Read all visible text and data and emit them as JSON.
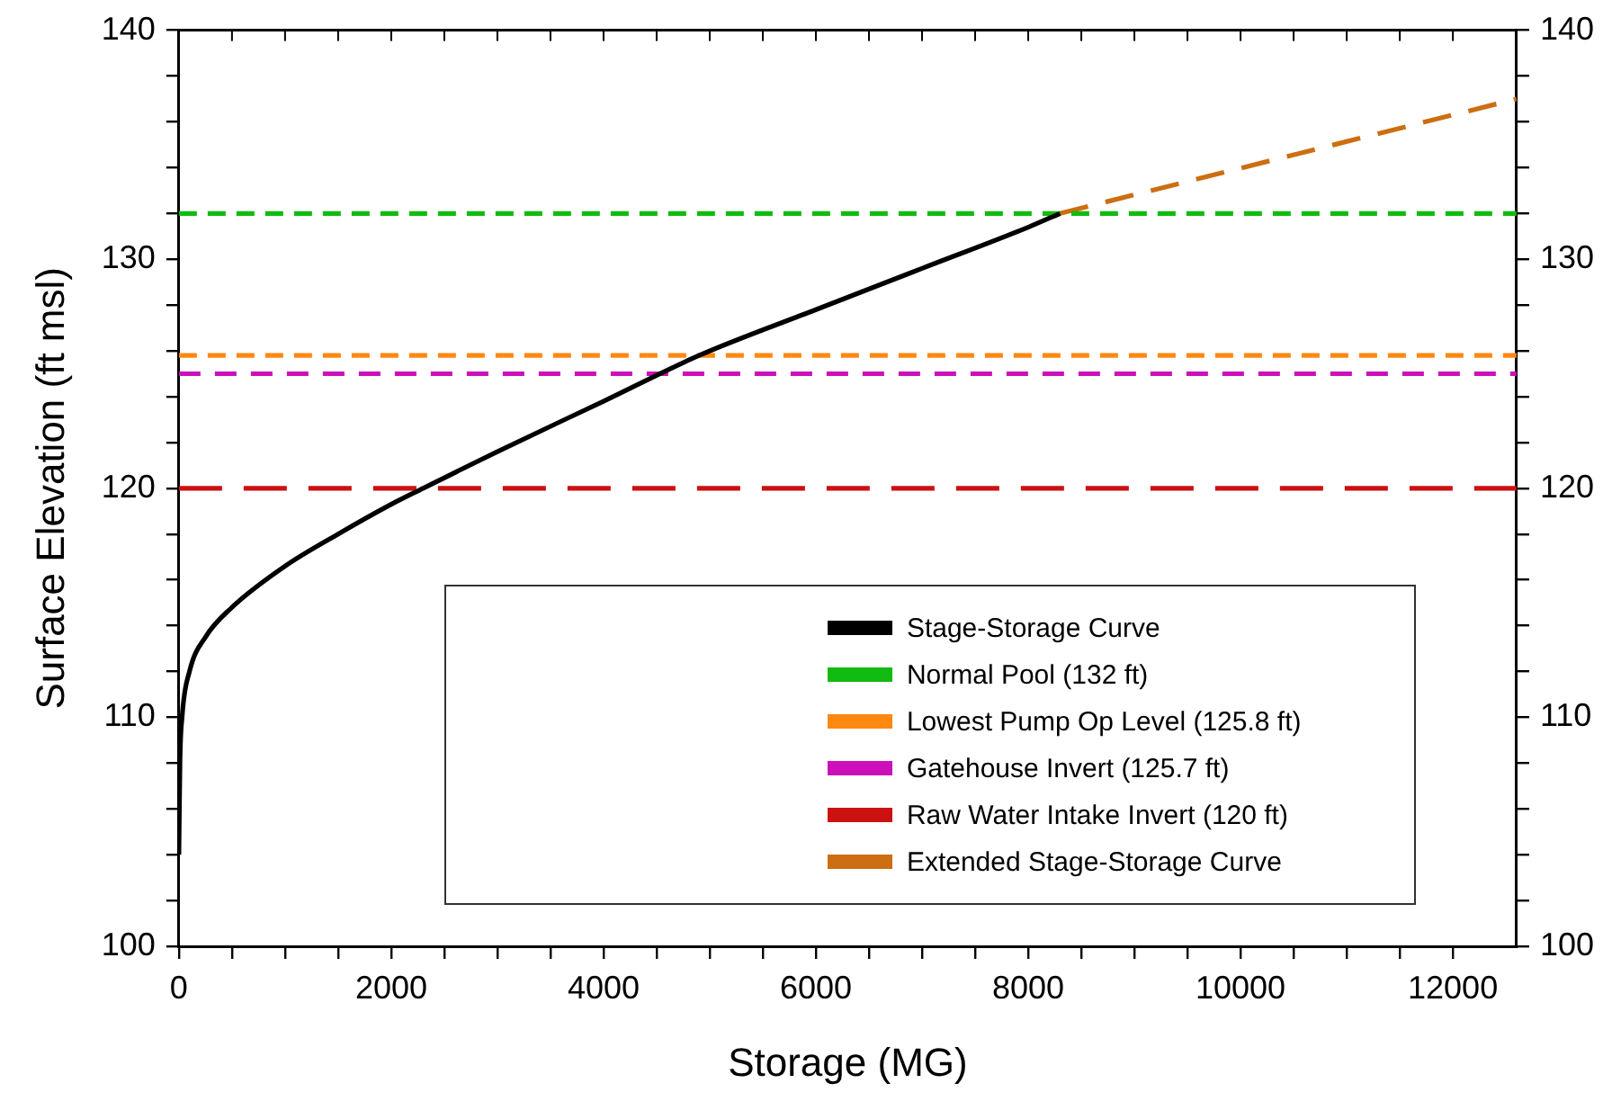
{
  "chart_data": {
    "type": "line",
    "xlabel": "Storage (MG)",
    "ylabel": "Surface Elevation (ft msl)",
    "xlim": [
      0,
      12600
    ],
    "xticks": [
      0,
      {
        "value": 500,
        "label": null
      },
      {
        "value": 1000,
        "label": null
      },
      {
        "value": 1500,
        "label": null
      },
      2000,
      {
        "value": 2500,
        "label": null
      },
      {
        "value": 3000,
        "label": null
      },
      {
        "value": 3500,
        "label": null
      },
      4000,
      {
        "value": 4500,
        "label": null
      },
      {
        "value": 5000,
        "label": null
      },
      {
        "value": 5500,
        "label": null
      },
      6000,
      {
        "value": 6500,
        "label": null
      },
      {
        "value": 7000,
        "label": null
      },
      {
        "value": 7500,
        "label": null
      },
      8000,
      {
        "value": 8500,
        "label": null
      },
      {
        "value": 9000,
        "label": null
      },
      {
        "value": 9500,
        "label": null
      },
      10000,
      {
        "value": 10500,
        "label": null
      },
      {
        "value": 11000,
        "label": null
      },
      {
        "value": 11500,
        "label": null
      },
      12000
    ],
    "ylim": [
      100,
      140
    ],
    "yticks": [
      100,
      {
        "value": 102,
        "label": null
      },
      {
        "value": 104,
        "label": null
      },
      {
        "value": 106,
        "label": null
      },
      {
        "value": 108,
        "label": null
      },
      110,
      {
        "value": 112,
        "label": null
      },
      {
        "value": 114,
        "label": null
      },
      {
        "value": 116,
        "label": null
      },
      {
        "value": 118,
        "label": null
      },
      120,
      {
        "value": 122,
        "label": null
      },
      {
        "value": 124,
        "label": null
      },
      {
        "value": 126,
        "label": null
      },
      {
        "value": 128,
        "label": null
      },
      130,
      {
        "value": 132,
        "label": null
      },
      {
        "value": 134,
        "label": null
      },
      {
        "value": 136,
        "label": null
      },
      {
        "value": 138,
        "label": null
      },
      140
    ],
    "y2lim": [
      100,
      140
    ],
    "y2ticks": [
      100,
      {
        "value": 102,
        "label": null
      },
      {
        "value": 104,
        "label": null
      },
      {
        "value": 106,
        "label": null
      },
      {
        "value": 108,
        "label": null
      },
      110,
      {
        "value": 112,
        "label": null
      },
      {
        "value": 114,
        "label": null
      },
      {
        "value": 116,
        "label": null
      },
      {
        "value": 118,
        "label": null
      },
      120,
      {
        "value": 122,
        "label": null
      },
      {
        "value": 124,
        "label": null
      },
      {
        "value": 126,
        "label": null
      },
      {
        "value": 128,
        "label": null
      },
      130,
      {
        "value": 132,
        "label": null
      },
      {
        "value": 134,
        "label": null
      },
      {
        "value": 136,
        "label": null
      },
      {
        "value": 138,
        "label": null
      },
      140
    ],
    "grid": false,
    "legend": "bottom right",
    "marker": "none",
    "series": [
      {
        "name": "Stage-Storage Curve",
        "color": "#000000",
        "line_style": "solid",
        "x": [
          0,
          10,
          30,
          100,
          250,
          500,
          1000,
          1500,
          2000,
          2300,
          3000,
          4000,
          4900,
          6000,
          7000,
          8000,
          8300
        ],
        "values": [
          104,
          108,
          110,
          112,
          113.5,
          114.8,
          116.6,
          118,
          119.3,
          120,
          121.6,
          123.8,
          125.8,
          127.8,
          129.6,
          131.4,
          132
        ]
      },
      {
        "name": "Normal Pool (132 ft)",
        "color": "#11bb11",
        "line_style": "dashed",
        "x": [
          0,
          12600
        ],
        "values": [
          132,
          132
        ]
      },
      {
        "name": "Lowest Pump Op Level (125.8 ft)",
        "color": "#ff8811",
        "line_style": "dashed",
        "x": [
          0,
          12600
        ],
        "values": [
          125.8,
          125.8
        ]
      },
      {
        "name": "Gatehouse Invert (125.7 ft)",
        "color": "#cc11bb",
        "line_style": "dashed",
        "x": [
          0,
          12600
        ],
        "values": [
          125,
          125
        ]
      },
      {
        "name": "Raw Water Intake Invert (120 ft)",
        "color": "#cc1111",
        "line_style": "dashed",
        "x": [
          0,
          12600
        ],
        "values": [
          120,
          120
        ]
      },
      {
        "name": "Extended Stage-Storage Curve",
        "color": "#cc6e11",
        "line_style": "dashed",
        "x": [
          8300,
          12600
        ],
        "values": [
          132,
          137
        ]
      }
    ]
  }
}
